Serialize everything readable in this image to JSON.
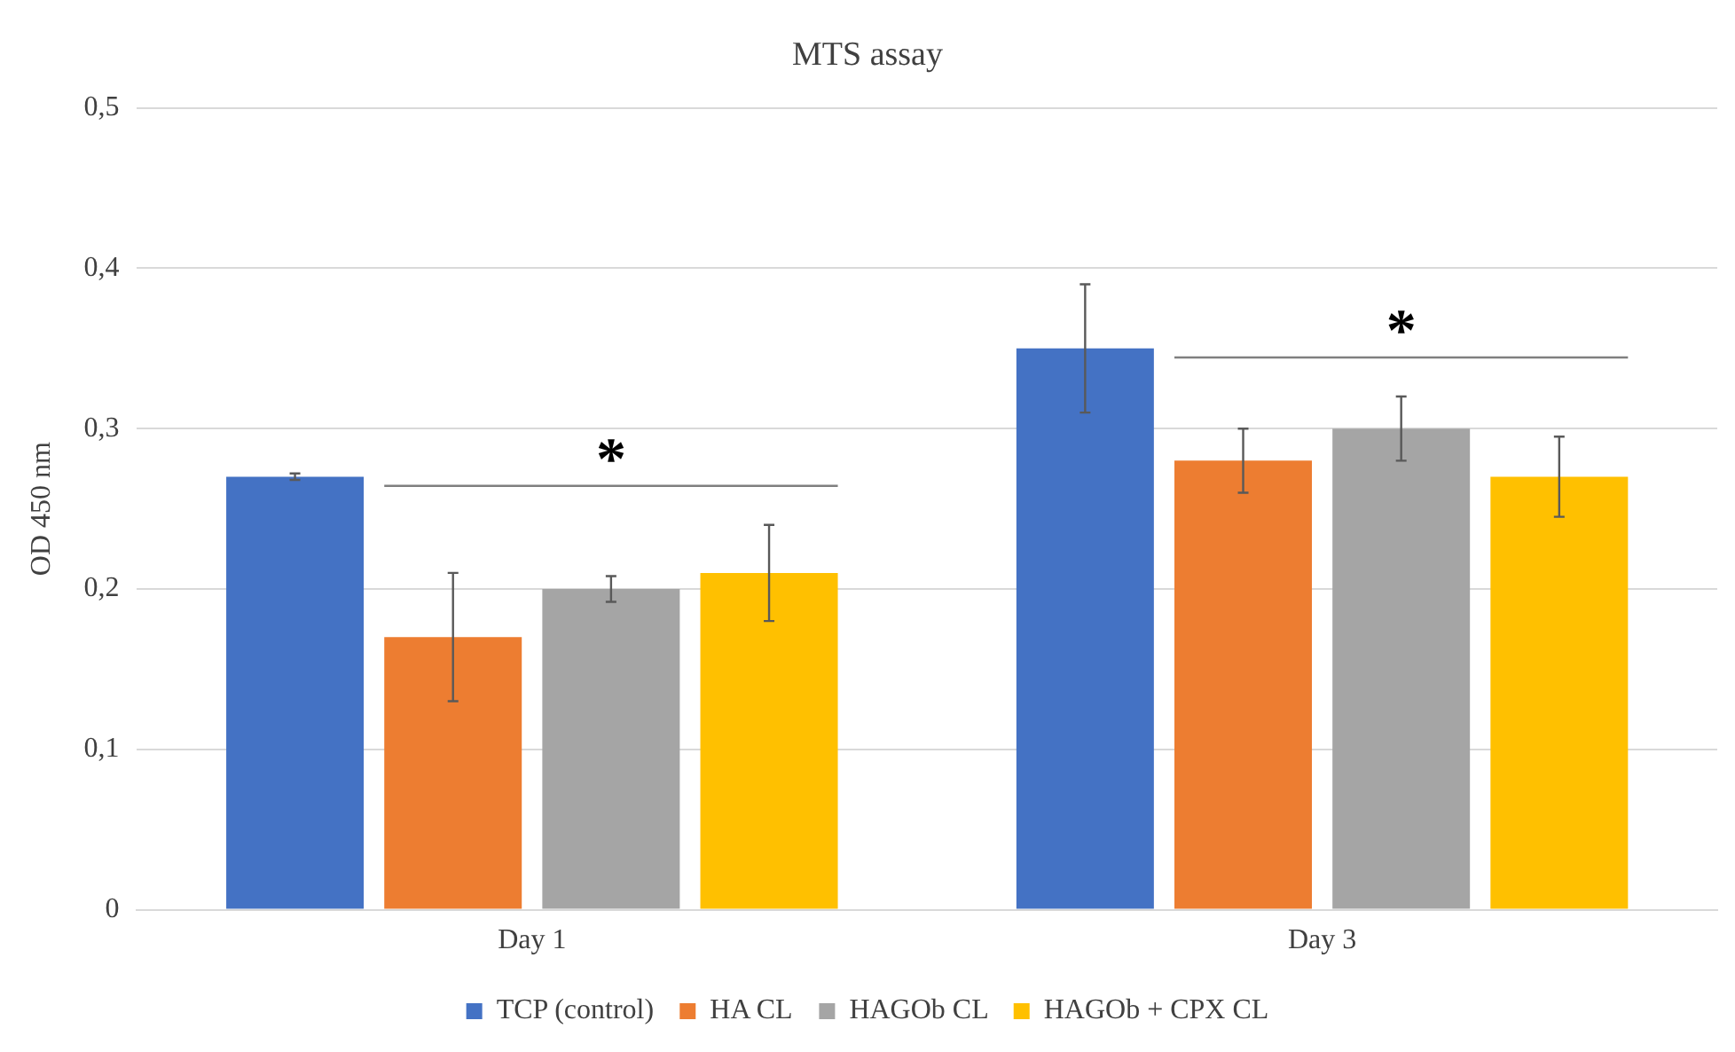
{
  "chart_data": {
    "type": "bar",
    "title": "MTS assay",
    "ylabel": "OD 450 nm",
    "categories": [
      "Day 1",
      "Day 3"
    ],
    "series": [
      {
        "name": "TCP (control)",
        "color": "#4472c4",
        "values": [
          0.27,
          0.35
        ],
        "errors": [
          0.002,
          0.04
        ]
      },
      {
        "name": "HA CL",
        "color": "#ed7d31",
        "values": [
          0.17,
          0.28
        ],
        "errors": [
          0.04,
          0.02
        ]
      },
      {
        "name": "HAGOb CL",
        "color": "#a5a5a5",
        "values": [
          0.2,
          0.3
        ],
        "errors": [
          0.008,
          0.02
        ]
      },
      {
        "name": "HAGOb + CPX CL",
        "color": "#ffc000",
        "values": [
          0.21,
          0.27
        ],
        "errors": [
          0.03,
          0.025
        ]
      }
    ],
    "ylim": [
      0,
      0.5
    ],
    "yticks": [
      0,
      {
        "value": 0.1,
        "label": "0,1"
      },
      {
        "value": 0.2,
        "label": "0,2"
      },
      {
        "value": 0.3,
        "label": "0,3"
      },
      {
        "value": 0.4,
        "label": "0,4"
      },
      {
        "value": 0.5,
        "label": "0,5"
      }
    ],
    "grid": "y",
    "legend": "bottom",
    "annotations": [
      "*",
      "*"
    ]
  }
}
